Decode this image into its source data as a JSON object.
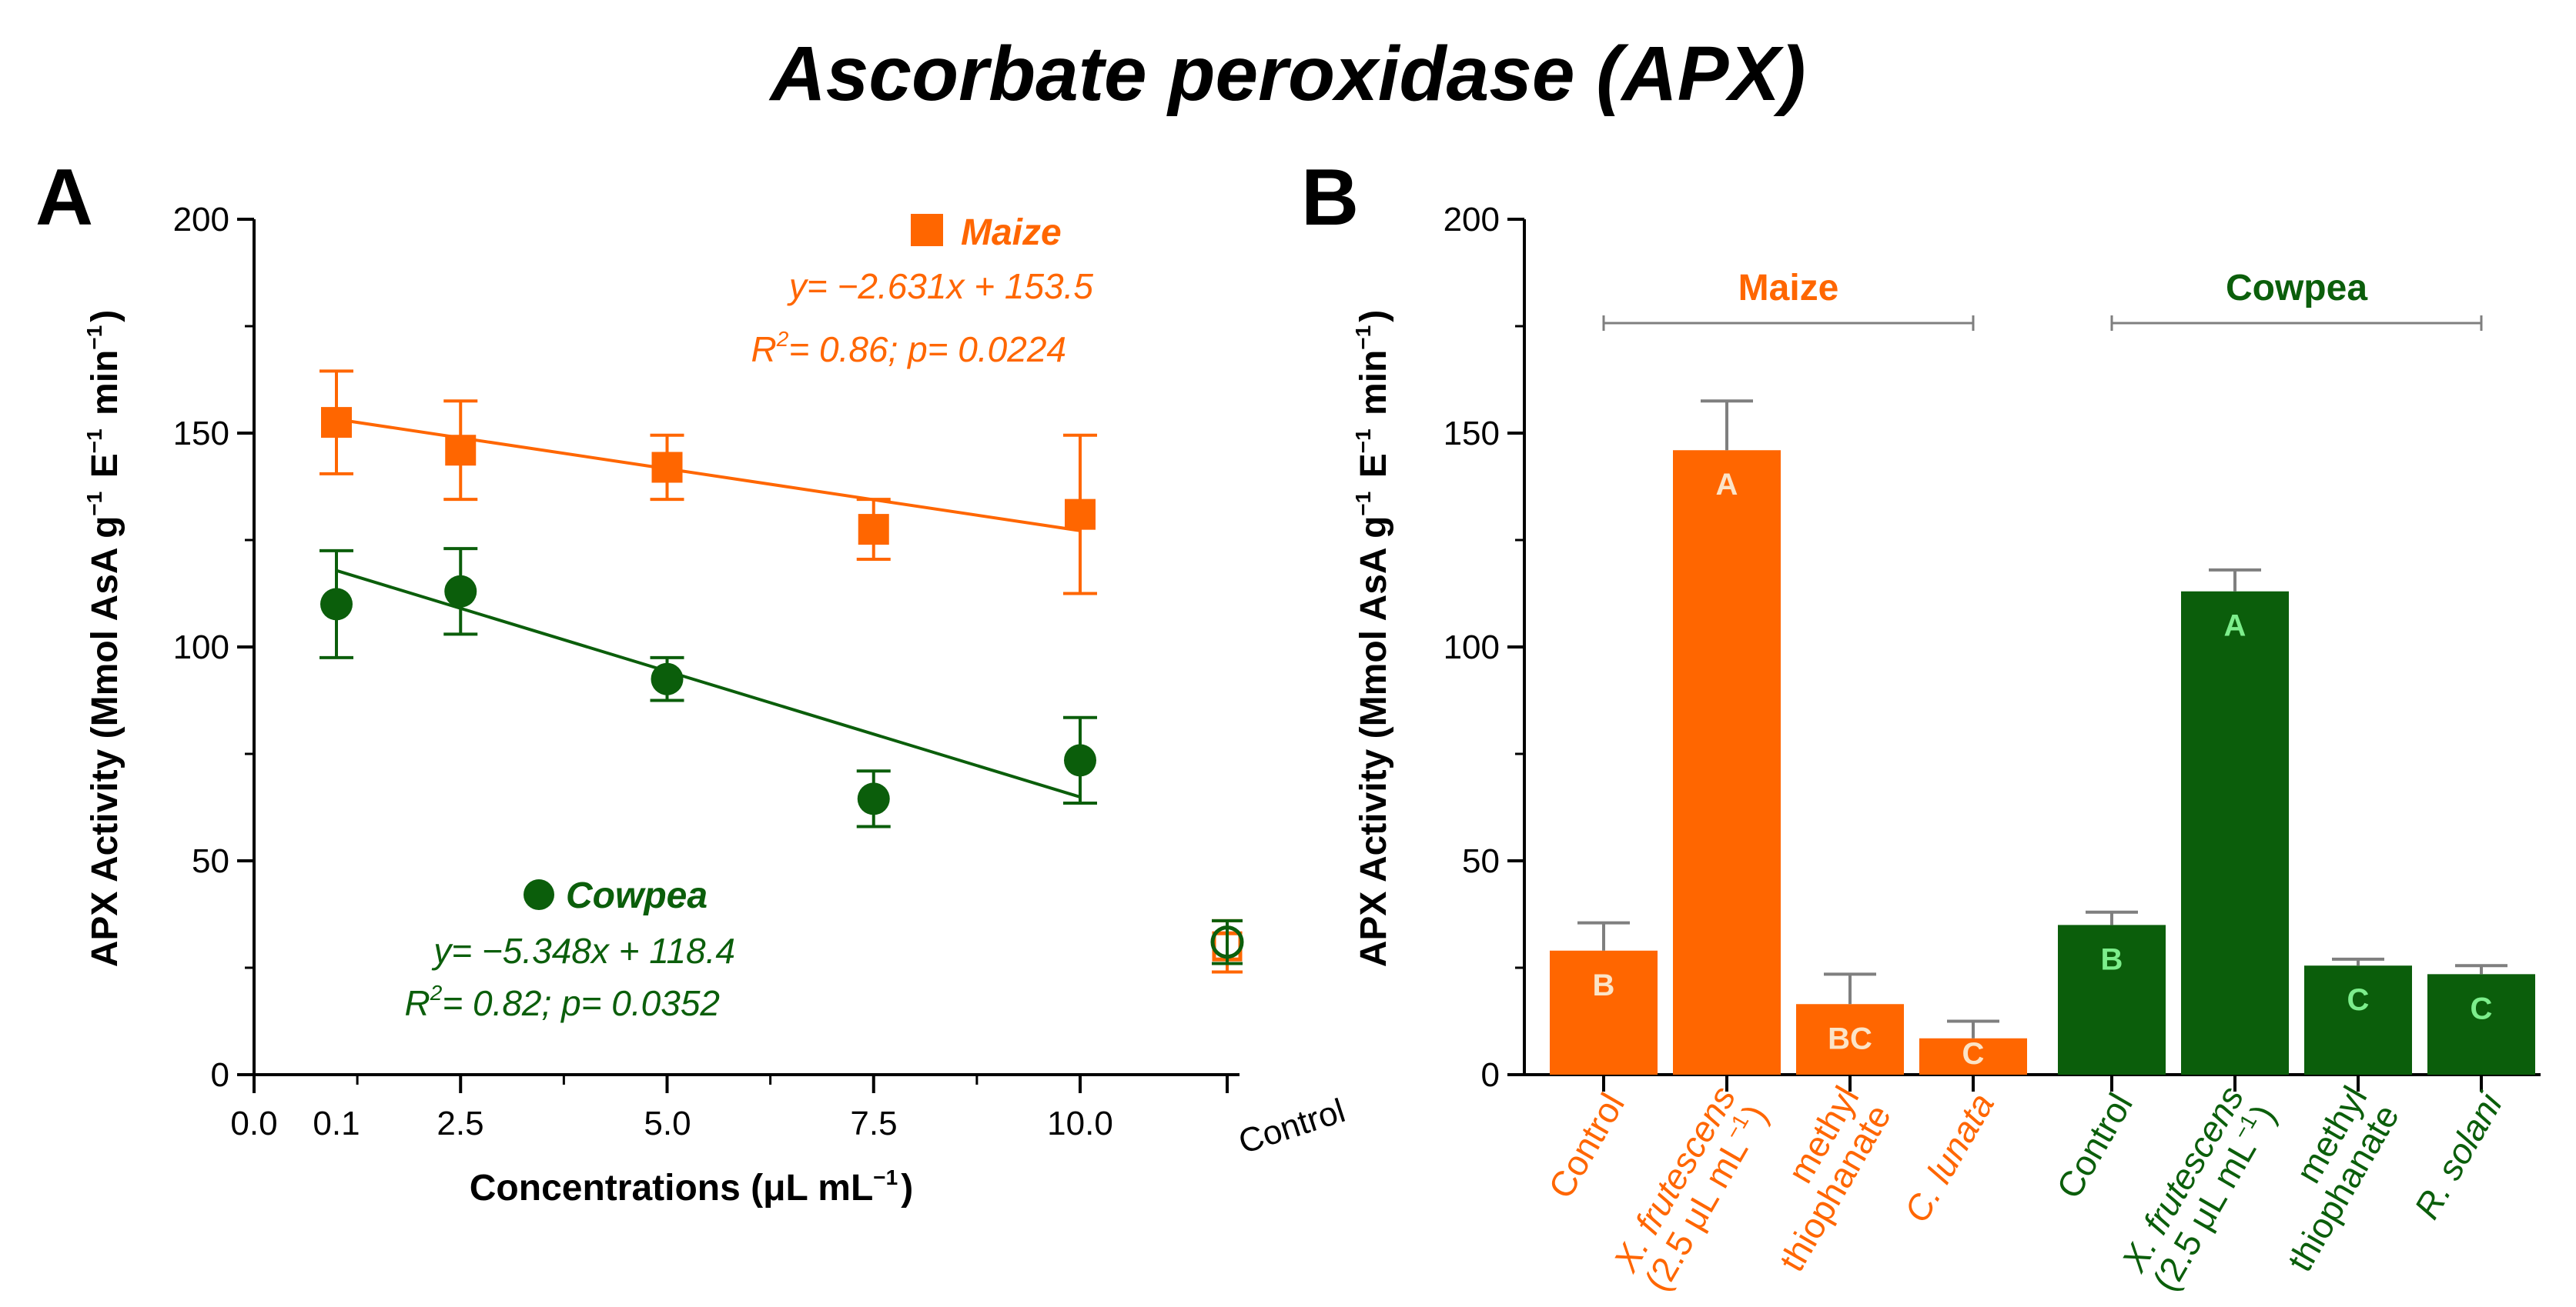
{
  "title": "Ascorbate peroxidase (APX)",
  "colors": {
    "maize": "#ff6600",
    "cowpea": "#0b5e0b",
    "axis": "#000000",
    "errorbar_b": "#7f7f7f",
    "letter_maize": "#fbe4c8",
    "letter_cowpea": "#7dee8c"
  },
  "chart_data": [
    {
      "panel": "A",
      "type": "scatter",
      "xlabel": "Concentrations (μL mL⁻¹)",
      "ylabel": "APX Activity (Mmol AsA  g⁻¹ E⁻¹ min⁻¹)",
      "ylim": [
        0,
        200
      ],
      "yticks": [
        0,
        50,
        100,
        150,
        200
      ],
      "xtick_labels": [
        "0.0",
        "0.1",
        "2.5",
        "5.0",
        "7.5",
        "10.0",
        "Control"
      ],
      "series": [
        {
          "name": "Maize",
          "marker": "square",
          "color": "#ff6600",
          "x": [
            0.1,
            2.5,
            5.0,
            7.5,
            10.0
          ],
          "y": [
            152.5,
            146,
            142,
            127.5,
            131
          ],
          "err": [
            12,
            11.5,
            7.5,
            7,
            18.5
          ],
          "control": {
            "y": 30,
            "err": 6
          },
          "fit": {
            "equation": "y= −2.631x + 153.5",
            "r2_label": "R",
            "r2_sup": "2",
            "r2_rest": "= 0.86; p= 0.0224",
            "slope": -2.631,
            "intercept": 153.5
          }
        },
        {
          "name": "Cowpea",
          "marker": "circle",
          "color": "#0b5e0b",
          "x": [
            0.1,
            2.5,
            5.0,
            7.5,
            10.0
          ],
          "y": [
            110,
            113,
            92.5,
            64.5,
            73.5
          ],
          "err": [
            12.5,
            10,
            5,
            6.5,
            10
          ],
          "control": {
            "y": 31,
            "err": 5
          },
          "fit": {
            "equation": "y= −5.348x + 118.4",
            "r2_label": "R",
            "r2_sup": "2",
            "r2_rest": "= 0.82; p= 0.0352",
            "slope": -5.348,
            "intercept": 118.4
          }
        }
      ]
    },
    {
      "panel": "B",
      "type": "bar",
      "ylabel": "APX Activity (Mmol AsA  g⁻¹ E⁻¹ min⁻¹)",
      "ylim": [
        0,
        200
      ],
      "yticks": [
        0,
        50,
        100,
        150,
        200
      ],
      "groups": [
        {
          "name": "Maize",
          "color": "#ff6600",
          "bars": [
            {
              "label": [
                "Control"
              ],
              "value": 29,
              "err": 6.5,
              "letter": "B"
            },
            {
              "label": [
                "X. frutescens",
                "(2.5 μL mL⁻¹)"
              ],
              "value": 146,
              "err": 11.5,
              "letter": "A"
            },
            {
              "label": [
                "methyl",
                "thiophanate"
              ],
              "value": 16.5,
              "err": 7,
              "letter": "BC"
            },
            {
              "label": [
                "C. lunata"
              ],
              "value": 8.5,
              "err": 4,
              "letter": "C"
            }
          ]
        },
        {
          "name": "Cowpea",
          "color": "#0b5e0b",
          "bars": [
            {
              "label": [
                "Control"
              ],
              "value": 35,
              "err": 3,
              "letter": "B"
            },
            {
              "label": [
                "X. frutescens",
                "(2.5 μL mL⁻¹)"
              ],
              "value": 113,
              "err": 5,
              "letter": "A"
            },
            {
              "label": [
                "methyl",
                "thiophanate"
              ],
              "value": 25.5,
              "err": 1.5,
              "letter": "C"
            },
            {
              "label": [
                "R. solani"
              ],
              "value": 23.5,
              "err": 2,
              "letter": "C"
            }
          ]
        }
      ]
    }
  ]
}
